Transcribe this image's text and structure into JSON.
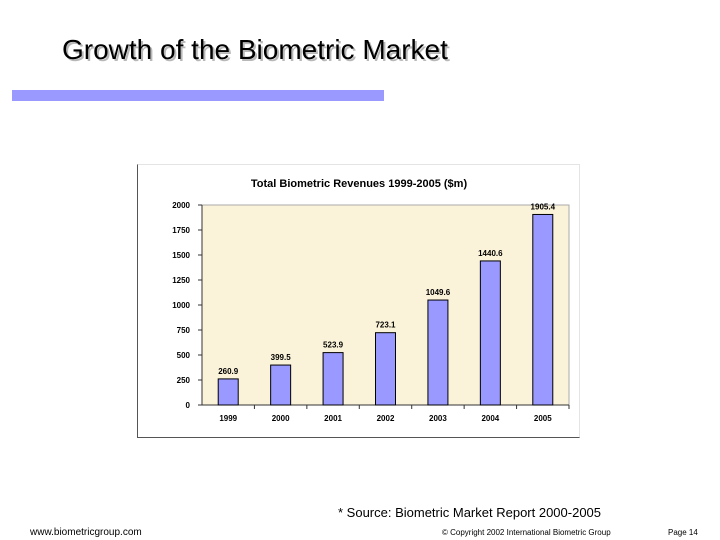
{
  "slide": {
    "title": "Growth of the Biometric Market",
    "source": "* Source: Biometric Market Report 2000-2005",
    "footer_url": "www.biometricgroup.com",
    "copyright": "© Copyright 2002 International Biometric Group",
    "page": "Page 14"
  },
  "colors": {
    "accent_bar": "#9999ff",
    "bar_fill": "#9999ff",
    "plot_background": "#fbf3d9"
  },
  "chart_data": {
    "type": "bar",
    "title": "Total Biometric Revenues 1999-2005 ($m)",
    "xlabel": "",
    "ylabel": "",
    "categories": [
      "1999",
      "2000",
      "2001",
      "2002",
      "2003",
      "2004",
      "2005"
    ],
    "values": [
      260.9,
      399.5,
      523.9,
      723.1,
      1049.6,
      1440.6,
      1905.4
    ],
    "value_labels": [
      "260.9",
      "399.5",
      "523.9",
      "723.1",
      "1049.6",
      "1440.6",
      "1905.4"
    ],
    "ylim": [
      0,
      2000
    ],
    "yticks": [
      0,
      250,
      500,
      750,
      1000,
      1250,
      1500,
      1750,
      2000
    ],
    "ytick_labels": [
      "0",
      "250",
      "500",
      "750",
      "1000",
      "1250",
      "1500",
      "1750",
      "2000"
    ],
    "grid": false,
    "legend": "none"
  }
}
